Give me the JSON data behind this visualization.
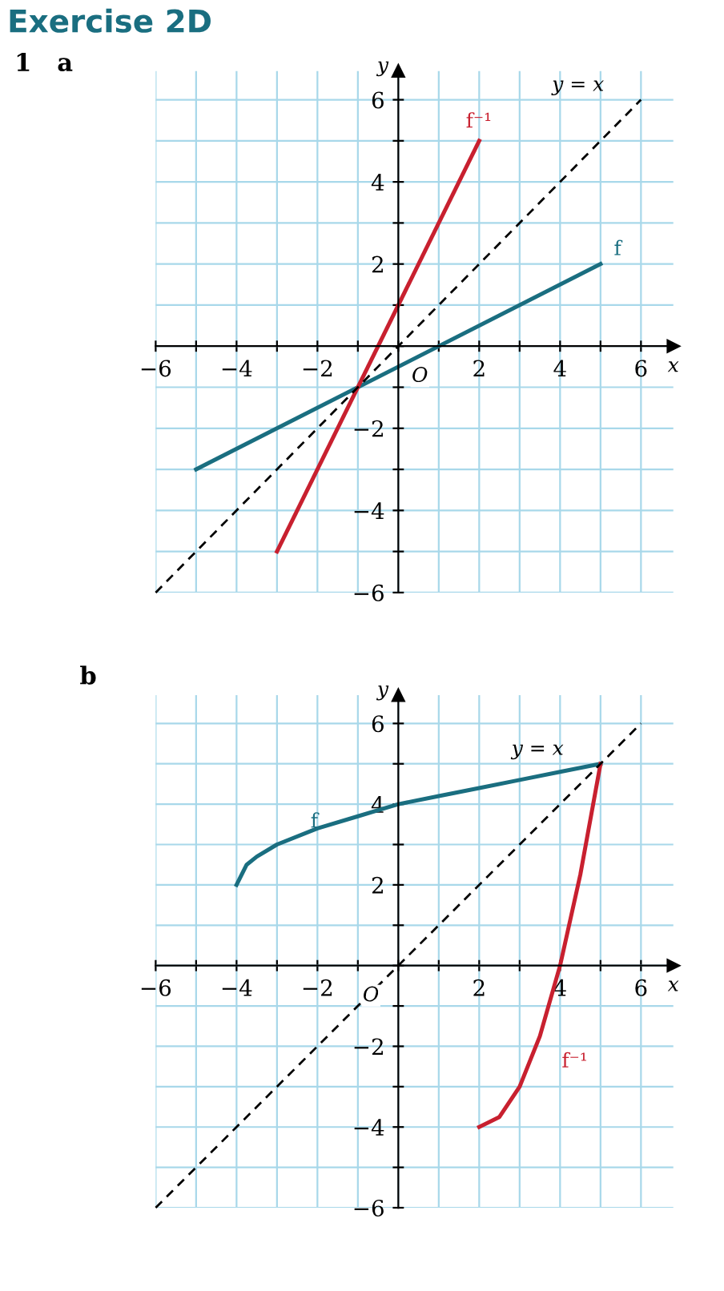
{
  "chart_data": [
    {
      "type": "line",
      "title": "Exercise 2D",
      "subtitle": "1   a",
      "xlabel": "x",
      "ylabel": "y",
      "xlim": [
        -6,
        6.8
      ],
      "ylim": [
        -6,
        6.7
      ],
      "xticks": [
        -6,
        {
          "value": -5,
          "label": null
        },
        -4,
        {
          "value": -3,
          "label": null
        },
        -2,
        {
          "value": -1,
          "label": null
        },
        {
          "value": 0,
          "label": null
        },
        {
          "value": 1,
          "label": null
        },
        2,
        {
          "value": 3,
          "label": null
        },
        4,
        {
          "value": 5,
          "label": null
        },
        6
      ],
      "yticks": [
        -6,
        {
          "value": -5,
          "label": null
        },
        -4,
        {
          "value": -3,
          "label": null
        },
        -2,
        {
          "value": -1,
          "label": null
        },
        {
          "value": 0,
          "label": null
        },
        {
          "value": 1,
          "label": null
        },
        2,
        {
          "value": 3,
          "label": null
        },
        4,
        {
          "value": 5,
          "label": null
        },
        6
      ],
      "grid": true,
      "legend": false,
      "marker": "none",
      "series": [
        {
          "color": "#1a6e80",
          "line_style": "solid",
          "x": [
            -5,
            5
          ],
          "values": [
            -3,
            2
          ]
        },
        {
          "color": "#c8202f",
          "line_style": "solid",
          "x": [
            -3,
            2
          ],
          "values": [
            -5,
            5
          ]
        },
        {
          "color": "#000000",
          "line_style": "dashed",
          "x": [
            -6,
            6
          ],
          "values": [
            -6,
            6
          ]
        }
      ],
      "annotations": [
        {
          "text": "f",
          "x": 5,
          "y": 2
        },
        {
          "text": "f⁻¹",
          "x": 2,
          "y": 5
        },
        {
          "text": "y = x",
          "x": 6,
          "y": 6
        },
        {
          "text": "O",
          "x": 0,
          "y": 0
        }
      ]
    },
    {
      "type": "line",
      "title": "b",
      "xlabel": "x",
      "ylabel": "y",
      "xlim": [
        -6,
        6.8
      ],
      "ylim": [
        -6,
        6.7
      ],
      "xticks": [
        -6,
        {
          "value": -5,
          "label": null
        },
        -4,
        {
          "value": -3,
          "label": null
        },
        -2,
        {
          "value": -1,
          "label": null
        },
        {
          "value": 0,
          "label": null
        },
        {
          "value": 1,
          "label": null
        },
        2,
        {
          "value": 3,
          "label": null
        },
        4,
        {
          "value": 5,
          "label": null
        },
        6
      ],
      "yticks": [
        -6,
        {
          "value": -5,
          "label": null
        },
        -4,
        {
          "value": -3,
          "label": null
        },
        -2,
        {
          "value": -1,
          "label": null
        },
        {
          "value": 0,
          "label": null
        },
        {
          "value": 1,
          "label": null
        },
        2,
        {
          "value": 3,
          "label": null
        },
        4,
        {
          "value": 5,
          "label": null
        },
        6
      ],
      "grid": true,
      "legend": false,
      "marker": "none",
      "series": [
        {
          "color": "#1a6e80",
          "line_style": "solid",
          "x": [
            -4,
            -3.75,
            -3.5,
            -3,
            -2,
            -1,
            0,
            1,
            2,
            3,
            4,
            5
          ],
          "values": [
            2,
            2.5,
            2.7,
            3,
            3.4,
            3.7,
            4,
            4.2,
            4.4,
            4.6,
            4.8,
            5
          ]
        },
        {
          "color": "#c8202f",
          "line_style": "solid",
          "x": [
            2,
            2.5,
            3,
            3.5,
            4,
            4.5,
            5
          ],
          "values": [
            -4,
            -3.75,
            -3,
            -1.75,
            0,
            2.25,
            5
          ]
        },
        {
          "color": "#000000",
          "line_style": "dashed",
          "x": [
            -6,
            6
          ],
          "values": [
            -6,
            6
          ]
        }
      ],
      "annotations": [
        {
          "text": "f",
          "x": -2.5,
          "y": 3.2
        },
        {
          "text": "f⁻¹",
          "x": 3.6,
          "y": -1.75
        },
        {
          "text": "y = x",
          "x": 5,
          "y": 5
        },
        {
          "text": "O",
          "x": 0,
          "y": 0
        }
      ]
    }
  ]
}
